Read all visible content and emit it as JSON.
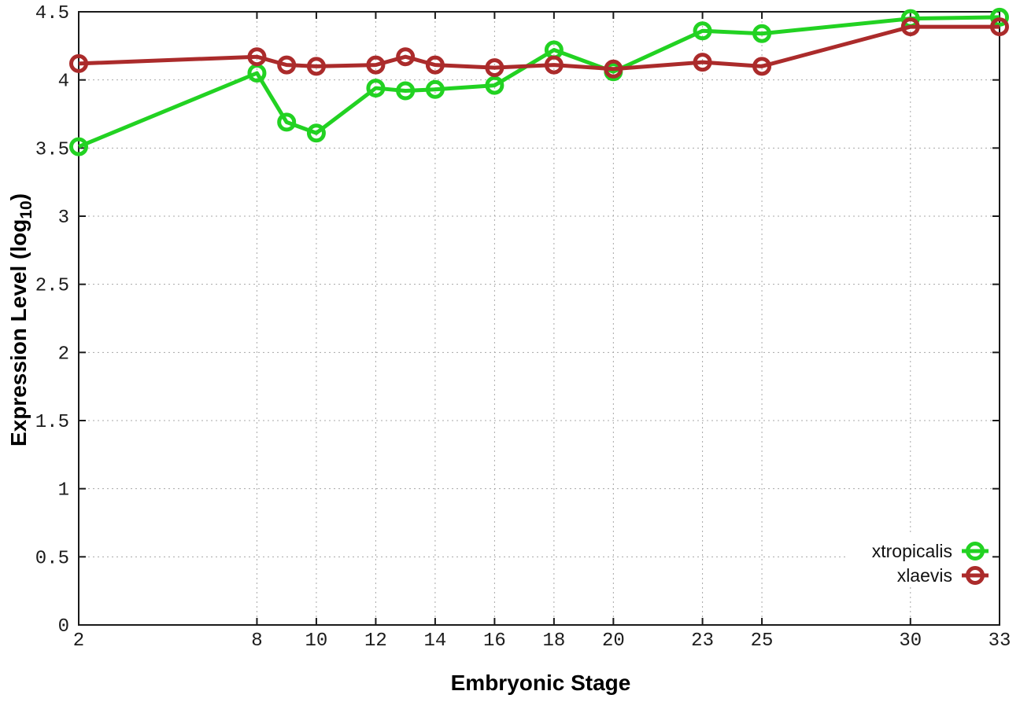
{
  "chart_data": {
    "type": "line",
    "title": "",
    "xlabel": "Embryonic Stage",
    "ylabel": "Expression Level (log10)",
    "ylabel_parts": {
      "main": "Expression Level (log",
      "sub": "10",
      "close": ")"
    },
    "x": [
      2,
      8,
      9,
      10,
      12,
      13,
      14,
      16,
      18,
      20,
      23,
      25,
      30,
      33
    ],
    "x_tick_labels": [
      2,
      8,
      10,
      12,
      14,
      16,
      18,
      20,
      23,
      25,
      30,
      33
    ],
    "y_tick_labels": [
      0,
      0.5,
      1,
      1.5,
      2,
      2.5,
      3,
      3.5,
      4,
      4.5
    ],
    "xlim": [
      2,
      33
    ],
    "ylim": [
      0,
      4.5
    ],
    "grid": true,
    "legend_position": "bottom-right",
    "series": [
      {
        "name": "xtropicalis",
        "color": "#22d222",
        "values": [
          3.51,
          4.05,
          3.69,
          3.61,
          3.94,
          3.92,
          3.93,
          3.96,
          4.22,
          4.06,
          4.36,
          4.34,
          4.45,
          4.46
        ]
      },
      {
        "name": "xlaevis",
        "color": "#ab2b2b",
        "values": [
          4.12,
          4.17,
          4.11,
          4.1,
          4.11,
          4.17,
          4.11,
          4.09,
          4.11,
          4.08,
          4.13,
          4.1,
          4.39,
          4.39
        ]
      }
    ],
    "marker": "open-circle"
  },
  "colors": {
    "axis": "#1a1a1a",
    "grid": "#a8a8a8",
    "tick_text": "#1c1c1c",
    "background": "#ffffff"
  }
}
